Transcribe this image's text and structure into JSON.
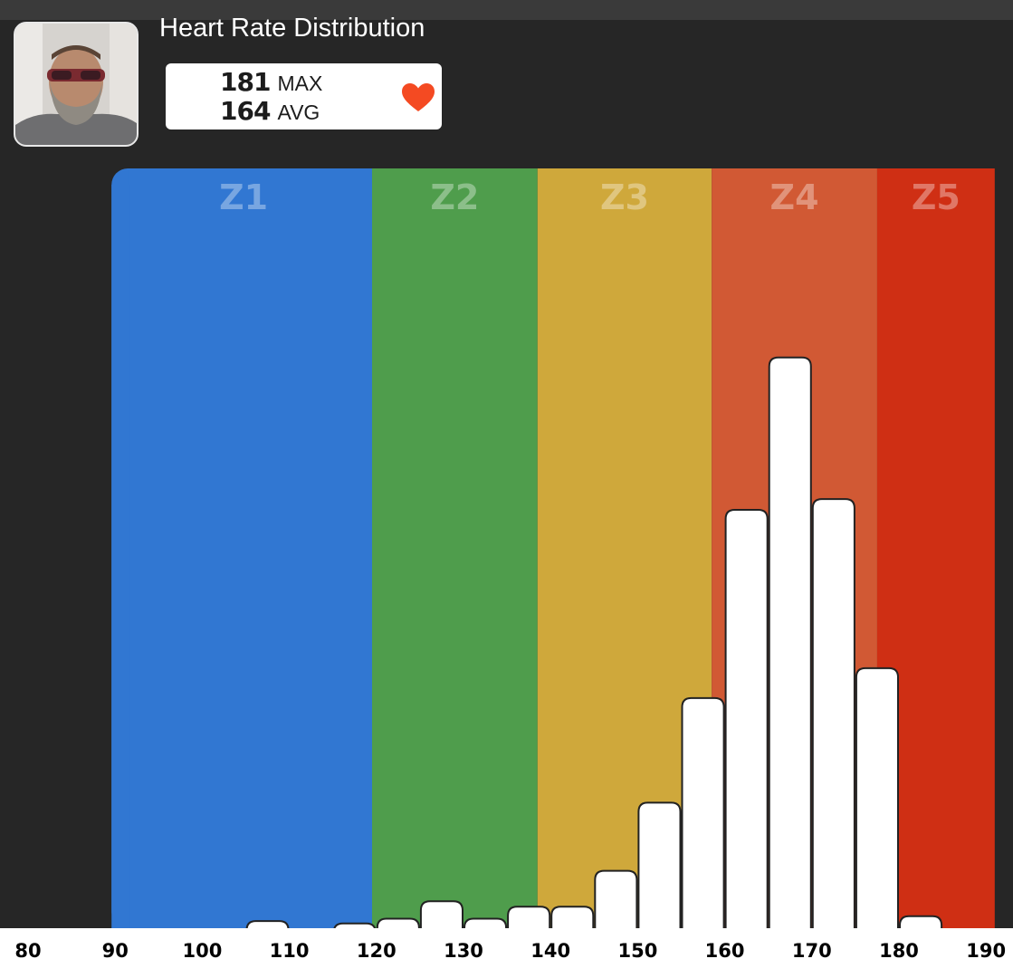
{
  "title": "Heart Rate Distribution",
  "stats": {
    "max_value": "181",
    "max_label": "MAX",
    "avg_value": "164",
    "avg_label": "AVG"
  },
  "colors": {
    "background": "#262626",
    "heart": "#f44a22",
    "bar_fill": "#ffffff",
    "bar_stroke": "#222222",
    "axis_bg": "#ffffff"
  },
  "icons": {
    "heart": "heart-icon",
    "avatar": "user-avatar-photo"
  },
  "chart_data": {
    "type": "bar",
    "title": "Heart Rate Distribution",
    "xlabel": "",
    "ylabel": "",
    "xlim": [
      80,
      191
    ],
    "ylim": [
      0,
      100
    ],
    "grid": false,
    "x_ticks": [
      80,
      90,
      100,
      110,
      120,
      130,
      140,
      150,
      160,
      170,
      180,
      190
    ],
    "zones": [
      {
        "name": "Z1",
        "from": 90,
        "to": 119.5,
        "color": "#3177d2"
      },
      {
        "name": "Z2",
        "from": 119.5,
        "to": 138.5,
        "color": "#4f9d4c"
      },
      {
        "name": "Z3",
        "from": 138.5,
        "to": 158.5,
        "color": "#cfa83b"
      },
      {
        "name": "Z4",
        "from": 158.5,
        "to": 177.5,
        "color": "#d15934"
      },
      {
        "name": "Z5",
        "from": 177.5,
        "to": 191,
        "color": "#cf2f14"
      }
    ],
    "bins": [
      {
        "from": 105,
        "to": 110,
        "value": 1.2
      },
      {
        "from": 115,
        "to": 120,
        "value": 0.8
      },
      {
        "from": 120,
        "to": 125,
        "value": 1.6
      },
      {
        "from": 125,
        "to": 130,
        "value": 4.5
      },
      {
        "from": 130,
        "to": 135,
        "value": 1.6
      },
      {
        "from": 135,
        "to": 140,
        "value": 3.6
      },
      {
        "from": 140,
        "to": 145,
        "value": 3.6
      },
      {
        "from": 145,
        "to": 150,
        "value": 9.6
      },
      {
        "from": 150,
        "to": 155,
        "value": 21.0
      },
      {
        "from": 155,
        "to": 160,
        "value": 38.5
      },
      {
        "from": 160,
        "to": 165,
        "value": 70.0
      },
      {
        "from": 165,
        "to": 170,
        "value": 95.5
      },
      {
        "from": 170,
        "to": 175,
        "value": 71.8
      },
      {
        "from": 175,
        "to": 180,
        "value": 43.5
      },
      {
        "from": 180,
        "to": 185,
        "value": 2.0
      }
    ]
  }
}
